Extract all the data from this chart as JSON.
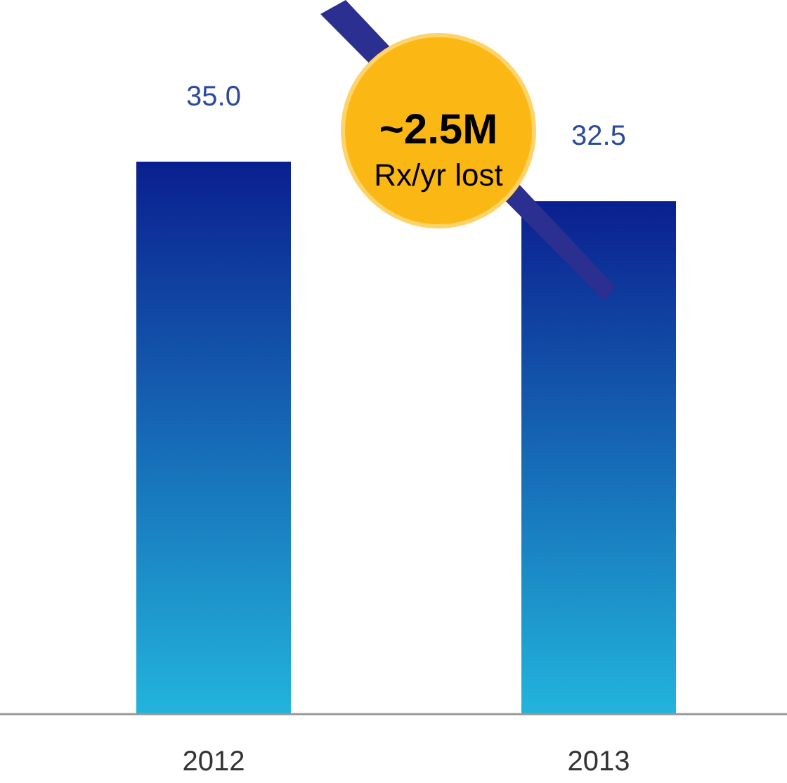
{
  "chart_data": {
    "type": "bar",
    "categories": [
      "2012",
      "2013"
    ],
    "values": [
      35.0,
      32.5
    ],
    "color": "#0a1f8f",
    "tick_labels": "x",
    "value_labels": [
      "35.0",
      "32.5"
    ],
    "annotations": [
      "~2.5M",
      "Rx/yr lost"
    ]
  }
}
